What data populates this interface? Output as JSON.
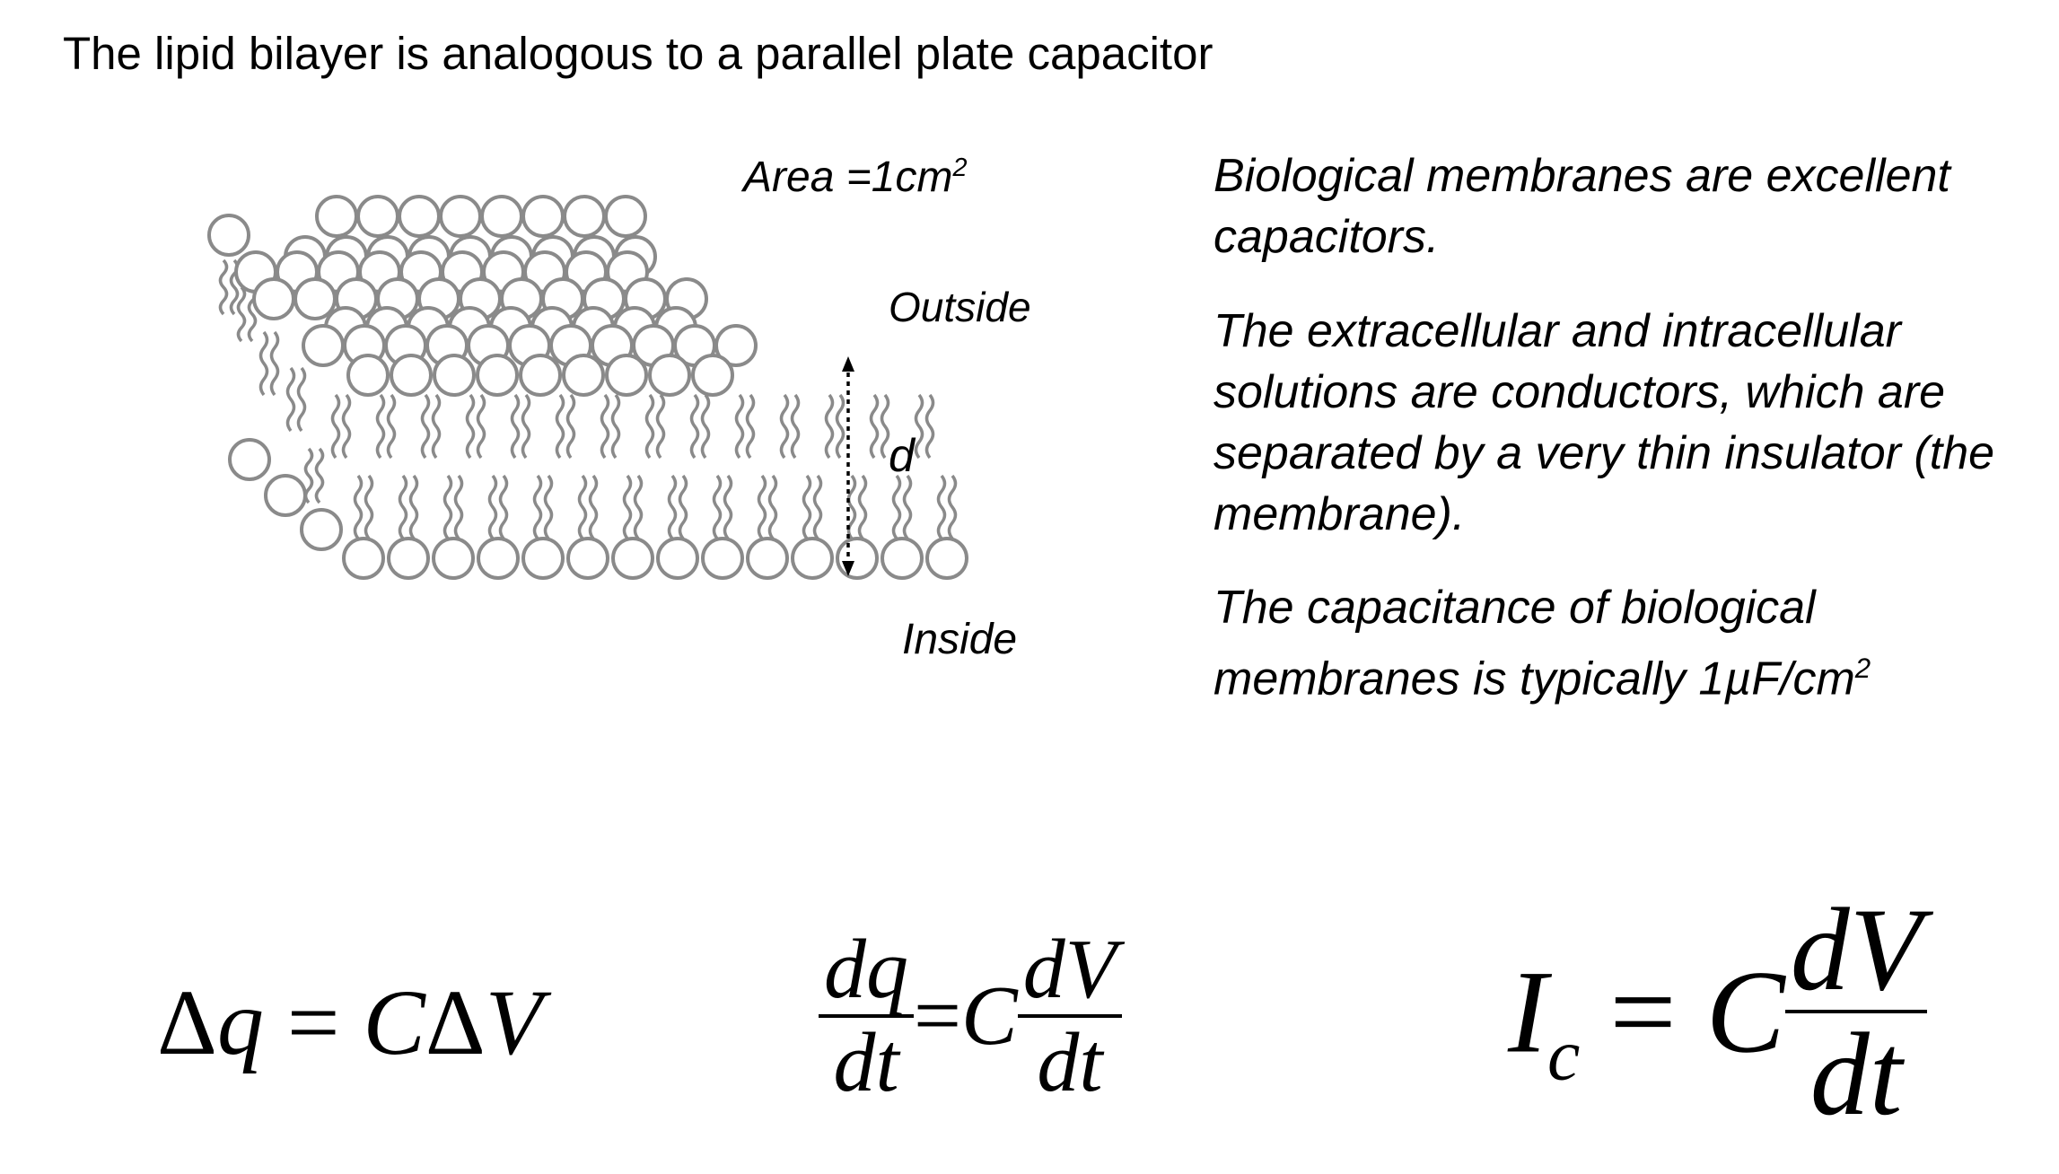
{
  "slide": {
    "title": "The lipid bilayer is analogous to a parallel plate capacitor"
  },
  "diagram": {
    "area": "Area =1cm",
    "area_sup": "2",
    "outside": "Outside",
    "d": "d",
    "inside": "Inside",
    "stroke_color": "#8a8a8a"
  },
  "text": {
    "p1": "Biological membranes are excellent capacitors.",
    "p2": "The extracellular and intracellular solutions are conductors, which are separated by a very thin insulator (the membrane).",
    "p3": "The capacitance of biological membranes is typically 1µF/cm",
    "p3_sup": "2"
  },
  "equations": {
    "eq1": {
      "delta1": "Δ",
      "q": "q",
      "eq": " = ",
      "C": "C",
      "delta2": "Δ",
      "V": "V"
    },
    "eq2": {
      "num1": "dq",
      "den1": "dt",
      "eq": "=",
      "C": "C",
      "num2": "dV",
      "den2": "dt"
    },
    "eq3": {
      "I": "I",
      "sub": "c",
      "eq": " = ",
      "C": "C",
      "num": "dV",
      "den": "dt"
    }
  }
}
